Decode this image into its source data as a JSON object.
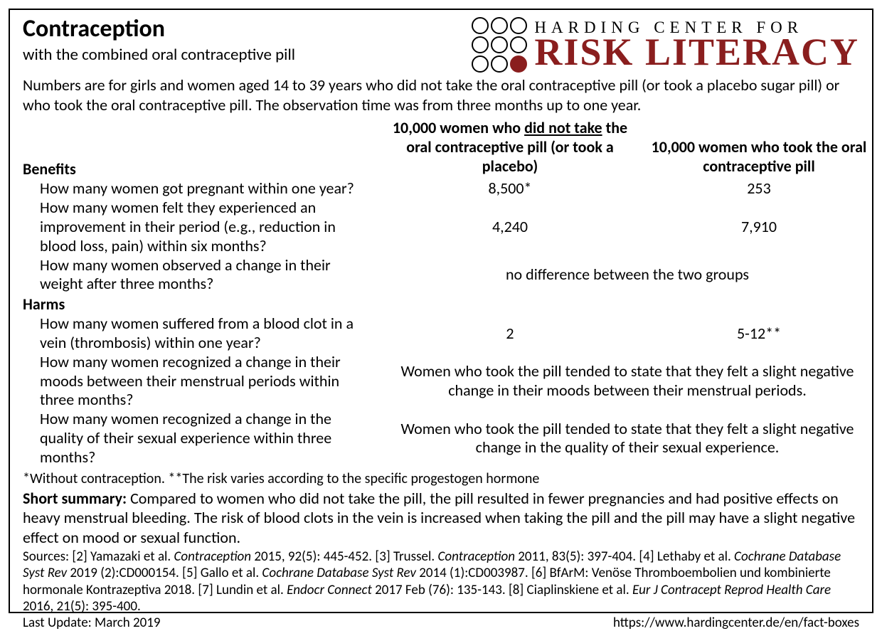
{
  "header": {
    "title": "Contraception",
    "subtitle": "with the combined oral contraceptive pill",
    "logo_line1": "HARDING CENTER FOR",
    "logo_line2": "RISK LITERACY",
    "brand_color": "#8a1e1e",
    "dot_border_color": "#000000"
  },
  "intro": "Numbers are for girls and women aged 14 to 39 years who did not take the oral contraceptive pill (or took a placebo sugar pill) or who took the oral contraceptive pill. The observation time was from three months up to one year.",
  "columns": {
    "col1_pre": "10,000 women who ",
    "col1_underline": "did not take",
    "col1_post": " the oral contraceptive pill (or took a placebo)",
    "col2": "10,000 women who took the oral contraceptive pill"
  },
  "benefits_label": "Benefits",
  "harms_label": "Harms",
  "rows": {
    "b1": {
      "q": "How many women got pregnant within one year?",
      "v1": "8,500*",
      "v2": "253"
    },
    "b2": {
      "q": "How many women felt they experienced an improvement in their period (e.g., reduction in blood loss, pain) within six months?",
      "v1": "4,240",
      "v2": "7,910"
    },
    "b3": {
      "q": "How many women observed a change in their weight after three months?",
      "span": "no difference between the two groups"
    },
    "h1": {
      "q": "How many women suffered from a blood clot in a vein (thrombosis) within one year?",
      "v1": "2",
      "v2": "5-12**"
    },
    "h2": {
      "q": "How many women recognized a change in their moods between their menstrual periods within three months?",
      "span": "Women who took the pill tended to state that they felt a slight negative change in their moods between their menstrual periods."
    },
    "h3": {
      "q": "How many women recognized a change in the quality of their sexual experience within three months?",
      "span": "Women who took the pill tended to state that they felt a slight negative change in the quality of their sexual experience."
    }
  },
  "footnotes": "*Without contraception. **The risk varies according to the specific progestogen hormone",
  "summary_label": "Short summary: ",
  "summary": "Compared to women who did not take the pill, the pill resulted in fewer pregnancies and had positive effects on heavy menstrual bleeding. The risk of blood clots in the vein is increased when taking the pill and the pill may have a slight negative effect on mood or sexual function.",
  "sources_html": "Sources: [2] Yamazaki et al. <em>Contraception</em> 2015, 92(5): 445-452. [3] Trussel. <em>Contraception</em> 2011, 83(5): 397-404. [4] Lethaby et al. <em>Cochrane Database Syst Rev</em> 2019 (2):CD000154. [5] Gallo et al. <em>Cochrane Database Syst Rev</em> 2014 (1):CD003987. [6] BfArM: Venöse Thromboembolien und kombinierte hormonale Kontrazeptiva 2018. [7] Lundin et al. <em>Endocr Connect</em> 2017 Feb (76): 135-143. [8] Ciaplinskiene et al. <em>Eur J Contracept Reprod Health Care</em> 2016, 21(5): 395-400.",
  "last_update": "Last Update: March 2019",
  "url": "https://www.hardingcenter.de/en/fact-boxes"
}
